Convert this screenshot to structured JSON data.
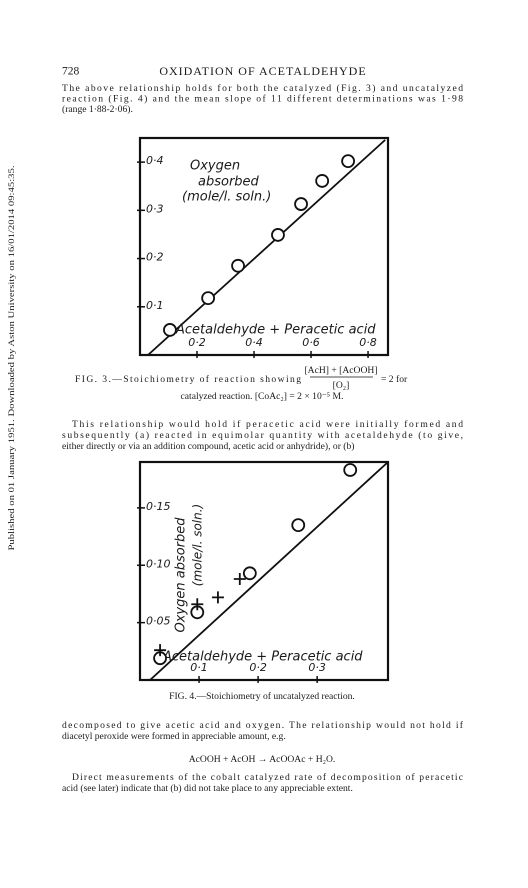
{
  "header": {
    "page_number": "728",
    "running_title": "OXIDATION OF ACETALDEHYDE"
  },
  "side_note": "Published on 01 January 1951. Downloaded by Aston University on 16/01/2014 09:45:35.",
  "paragraphs": [
    [
      "The above relationship holds for both the catalyzed (Fig. 3) and uncatalyzed",
      "reaction (Fig. 4) and the mean slope of 11 different determinations was 1·98",
      "(range 1·88-2·06)."
    ],
    [
      "This relationship would hold if peracetic acid were initially formed and",
      "subsequently (a) reacted in equimolar quantity with acetaldehyde (to give,",
      "either directly or via an addition compound, acetic acid or anhydride), or (b)"
    ],
    [
      "decomposed to give acetic acid and oxygen.  The relationship would not hold if",
      "diacetyl peroxide were formed in appreciable amount, e.g."
    ],
    [
      "Direct measurements of the cobalt catalyzed rate of decomposition of peracetic",
      "acid (see later) indicate that (b) did not take place to any appreciable extent."
    ]
  ],
  "equation": "AcOOH + AcOH → AcOOAc + H₂O.",
  "chart_data": [
    {
      "type": "scatter",
      "annotations": [
        "Oxygen",
        "absorbed",
        "(mole/l. soln.)",
        "Acetaldehyde  + Peracetic acid"
      ],
      "caption": {
        "lead": "FIG. 3.—Stoichiometry of reaction showing",
        "numerator": "[AcH] + [AcOOH]",
        "denominator": "[O₂]",
        "trail": "= 2 for",
        "second_line": "catalyzed reaction.  [CoAc₂] = 2 × 10⁻⁵ M."
      },
      "xlim": [
        0,
        0.87
      ],
      "ylim": [
        0,
        0.45
      ],
      "xticks": [
        {
          "value": 0.2,
          "label": "0·2"
        },
        {
          "value": 0.4,
          "label": "0·4"
        },
        {
          "value": 0.6,
          "label": "0·6"
        },
        {
          "value": 0.8,
          "label": "0·8"
        }
      ],
      "yticks": [
        {
          "value": 0.1,
          "label": "0·1"
        },
        {
          "value": 0.2,
          "label": "0·2"
        },
        {
          "value": 0.3,
          "label": "0·3"
        },
        {
          "value": 0.4,
          "label": "0·4"
        }
      ],
      "series": [
        {
          "marker": "circle",
          "color": "#111111",
          "x": [
            0.105,
            0.239,
            0.344,
            0.484,
            0.565,
            0.639,
            0.73
          ],
          "values": [
            0.052,
            0.118,
            0.185,
            0.249,
            0.313,
            0.361,
            0.402
          ]
        }
      ],
      "fit_line": {
        "x": [
          0.028,
          0.86
        ],
        "values": [
          0,
          0.446
        ]
      }
    },
    {
      "type": "scatter",
      "annotations": [
        "Oxygen absorbed",
        "(mole/l. soln.)",
        "Acetaldehyde + Peracetic acid"
      ],
      "caption": {
        "lead": "FIG. 4.—Stoichiometry of uncatalyzed reaction."
      },
      "xlim": [
        0,
        0.42
      ],
      "ylim": [
        0,
        0.19
      ],
      "xticks": [
        {
          "value": 0.1,
          "label": "0·1"
        },
        {
          "value": 0.2,
          "label": "0·2"
        },
        {
          "value": 0.3,
          "label": "0·3"
        }
      ],
      "yticks": [
        {
          "value": 0.05,
          "label": "0·05"
        },
        {
          "value": 0.1,
          "label": "0·10"
        },
        {
          "value": 0.15,
          "label": "0·15"
        }
      ],
      "series": [
        {
          "marker": "circle",
          "color": "#111111",
          "x": [
            0.034,
            0.097,
            0.186,
            0.268,
            0.356
          ],
          "values": [
            0.019,
            0.059,
            0.093,
            0.135,
            0.183
          ]
        },
        {
          "marker": "cross",
          "color": "#111111",
          "x": [
            0.034,
            0.097,
            0.132,
            0.169
          ],
          "values": [
            0.026,
            0.066,
            0.072,
            0.088
          ]
        }
      ],
      "fit_line": {
        "x": [
          0.017,
          0.42
        ],
        "values": [
          0,
          0.19
        ]
      }
    }
  ]
}
